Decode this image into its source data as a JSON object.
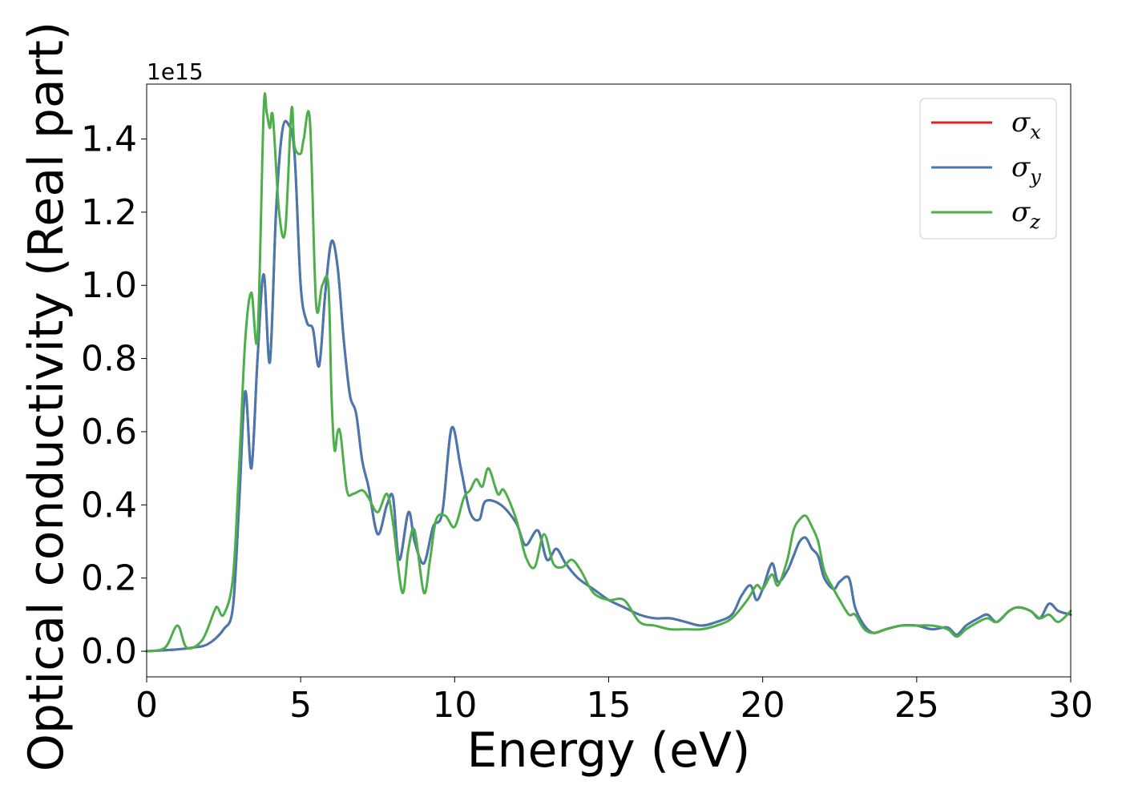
{
  "chart_data": {
    "type": "line",
    "title": "",
    "xlabel": "Energy (eV)",
    "ylabel": "Optical conductivity (Real part)",
    "y_offset_label": "1e15",
    "xlim": [
      0,
      30
    ],
    "ylim": [
      -0.07,
      1.55
    ],
    "xticks": [
      0,
      5,
      10,
      15,
      20,
      25,
      30
    ],
    "yticks": [
      0.0,
      0.2,
      0.4,
      0.6,
      0.8,
      1.0,
      1.2,
      1.4
    ],
    "ytick_labels": [
      "0.0",
      "0.2",
      "0.4",
      "0.6",
      "0.8",
      "1.0",
      "1.2",
      "1.4"
    ],
    "grid": false,
    "legend_position": "top-right",
    "series": [
      {
        "name": "σx",
        "legend_symbol": "σ",
        "legend_sub": "x",
        "color": "#d62728",
        "x": [
          0,
          1,
          1.5,
          2,
          2.5,
          2.8,
          3,
          3.2,
          3.4,
          3.6,
          3.8,
          4.0,
          4.2,
          4.4,
          4.6,
          4.8,
          5.0,
          5.2,
          5.4,
          5.6,
          5.8,
          6.0,
          6.2,
          6.4,
          6.6,
          6.8,
          7.0,
          7.2,
          7.5,
          7.8,
          8.0,
          8.2,
          8.5,
          8.7,
          9.0,
          9.3,
          9.6,
          9.9,
          10.2,
          10.5,
          10.8,
          11.0,
          11.5,
          12.0,
          12.3,
          12.7,
          13.0,
          13.3,
          13.6,
          14.0,
          14.5,
          15.0,
          15.5,
          16.0,
          16.5,
          17.0,
          17.5,
          18.0,
          18.5,
          19.0,
          19.3,
          19.6,
          19.8,
          20.0,
          20.3,
          20.5,
          20.8,
          21.0,
          21.2,
          21.4,
          21.6,
          21.8,
          22.0,
          22.3,
          22.5,
          22.8,
          23.0,
          23.3,
          23.6,
          24.0,
          24.5,
          25.0,
          25.5,
          26.0,
          26.3,
          26.6,
          27.0,
          27.3,
          27.6,
          28.0,
          28.3,
          28.7,
          29.0,
          29.3,
          29.6,
          30.0
        ],
        "y": [
          0.0,
          0.005,
          0.01,
          0.02,
          0.06,
          0.12,
          0.4,
          0.71,
          0.5,
          0.8,
          1.03,
          0.79,
          1.2,
          1.42,
          1.44,
          1.36,
          1.0,
          0.9,
          0.88,
          0.78,
          0.98,
          1.12,
          1.05,
          0.85,
          0.7,
          0.65,
          0.52,
          0.45,
          0.32,
          0.4,
          0.42,
          0.25,
          0.38,
          0.3,
          0.24,
          0.34,
          0.38,
          0.61,
          0.5,
          0.38,
          0.36,
          0.41,
          0.4,
          0.35,
          0.29,
          0.33,
          0.25,
          0.28,
          0.24,
          0.2,
          0.17,
          0.14,
          0.12,
          0.1,
          0.09,
          0.09,
          0.08,
          0.07,
          0.08,
          0.1,
          0.15,
          0.18,
          0.14,
          0.17,
          0.24,
          0.19,
          0.22,
          0.26,
          0.3,
          0.31,
          0.28,
          0.26,
          0.2,
          0.17,
          0.19,
          0.2,
          0.12,
          0.07,
          0.05,
          0.06,
          0.07,
          0.07,
          0.06,
          0.065,
          0.045,
          0.07,
          0.09,
          0.1,
          0.08,
          0.11,
          0.12,
          0.11,
          0.09,
          0.13,
          0.11,
          0.1
        ]
      },
      {
        "name": "σy",
        "legend_symbol": "σ",
        "legend_sub": "y",
        "color": "#4878b0",
        "x": [
          0,
          1,
          1.5,
          2,
          2.5,
          2.8,
          3,
          3.2,
          3.4,
          3.6,
          3.8,
          4.0,
          4.2,
          4.4,
          4.6,
          4.8,
          5.0,
          5.2,
          5.4,
          5.6,
          5.8,
          6.0,
          6.2,
          6.4,
          6.6,
          6.8,
          7.0,
          7.2,
          7.5,
          7.8,
          8.0,
          8.2,
          8.5,
          8.7,
          9.0,
          9.3,
          9.6,
          9.9,
          10.2,
          10.5,
          10.8,
          11.0,
          11.5,
          12.0,
          12.3,
          12.7,
          13.0,
          13.3,
          13.6,
          14.0,
          14.5,
          15.0,
          15.5,
          16.0,
          16.5,
          17.0,
          17.5,
          18.0,
          18.5,
          19.0,
          19.3,
          19.6,
          19.8,
          20.0,
          20.3,
          20.5,
          20.8,
          21.0,
          21.2,
          21.4,
          21.6,
          21.8,
          22.0,
          22.3,
          22.5,
          22.8,
          23.0,
          23.3,
          23.6,
          24.0,
          24.5,
          25.0,
          25.5,
          26.0,
          26.3,
          26.6,
          27.0,
          27.3,
          27.6,
          28.0,
          28.3,
          28.7,
          29.0,
          29.3,
          29.6,
          30.0
        ],
        "y": [
          0.0,
          0.005,
          0.01,
          0.02,
          0.06,
          0.12,
          0.4,
          0.71,
          0.5,
          0.8,
          1.03,
          0.79,
          1.2,
          1.42,
          1.44,
          1.36,
          1.0,
          0.9,
          0.88,
          0.78,
          0.98,
          1.12,
          1.05,
          0.85,
          0.7,
          0.65,
          0.52,
          0.45,
          0.32,
          0.4,
          0.42,
          0.25,
          0.38,
          0.3,
          0.24,
          0.34,
          0.38,
          0.61,
          0.5,
          0.38,
          0.36,
          0.41,
          0.4,
          0.35,
          0.29,
          0.33,
          0.25,
          0.28,
          0.24,
          0.2,
          0.17,
          0.14,
          0.12,
          0.1,
          0.09,
          0.09,
          0.08,
          0.07,
          0.08,
          0.1,
          0.15,
          0.18,
          0.14,
          0.17,
          0.24,
          0.19,
          0.22,
          0.26,
          0.3,
          0.31,
          0.28,
          0.26,
          0.2,
          0.17,
          0.19,
          0.2,
          0.12,
          0.07,
          0.05,
          0.06,
          0.07,
          0.07,
          0.06,
          0.065,
          0.045,
          0.07,
          0.09,
          0.1,
          0.08,
          0.11,
          0.12,
          0.11,
          0.09,
          0.13,
          0.11,
          0.1
        ]
      },
      {
        "name": "σz",
        "legend_symbol": "σ",
        "legend_sub": "z",
        "color": "#4daf4a",
        "x": [
          0,
          0.6,
          1.0,
          1.3,
          1.8,
          2.2,
          2.3,
          2.5,
          2.8,
          3.0,
          3.2,
          3.4,
          3.6,
          3.8,
          3.9,
          4.0,
          4.1,
          4.3,
          4.5,
          4.7,
          4.8,
          5.0,
          5.1,
          5.3,
          5.5,
          5.7,
          5.9,
          6.0,
          6.1,
          6.2,
          6.3,
          6.5,
          6.7,
          7.0,
          7.2,
          7.5,
          7.8,
          8.0,
          8.3,
          8.5,
          8.7,
          9.0,
          9.2,
          9.4,
          9.7,
          10.0,
          10.3,
          10.5,
          10.7,
          10.9,
          11.1,
          11.4,
          11.6,
          12.0,
          12.3,
          12.6,
          12.9,
          13.2,
          13.5,
          13.8,
          14.1,
          14.5,
          15.0,
          15.5,
          16.0,
          16.5,
          17.0,
          17.5,
          18.0,
          18.5,
          19.0,
          19.5,
          19.8,
          20.0,
          20.3,
          20.5,
          20.8,
          21.0,
          21.2,
          21.4,
          21.6,
          21.8,
          22.0,
          22.3,
          22.5,
          22.8,
          23.0,
          23.3,
          23.6,
          24.0,
          24.5,
          25.0,
          25.5,
          26.0,
          26.3,
          26.6,
          27.0,
          27.3,
          27.6,
          28.0,
          28.3,
          28.7,
          29.0,
          29.3,
          29.6,
          30.0
        ],
        "y": [
          0.0,
          0.01,
          0.07,
          0.01,
          0.03,
          0.11,
          0.12,
          0.1,
          0.2,
          0.5,
          0.85,
          0.98,
          0.86,
          1.48,
          1.47,
          1.43,
          1.46,
          1.2,
          1.15,
          1.48,
          1.38,
          1.36,
          1.4,
          1.45,
          0.95,
          1.0,
          1.0,
          0.7,
          0.55,
          0.6,
          0.59,
          0.44,
          0.43,
          0.44,
          0.42,
          0.38,
          0.43,
          0.35,
          0.16,
          0.28,
          0.33,
          0.16,
          0.25,
          0.36,
          0.37,
          0.34,
          0.42,
          0.44,
          0.47,
          0.45,
          0.5,
          0.43,
          0.44,
          0.36,
          0.26,
          0.23,
          0.32,
          0.24,
          0.23,
          0.25,
          0.22,
          0.16,
          0.14,
          0.14,
          0.08,
          0.07,
          0.06,
          0.06,
          0.06,
          0.07,
          0.09,
          0.14,
          0.18,
          0.17,
          0.21,
          0.18,
          0.25,
          0.33,
          0.36,
          0.37,
          0.34,
          0.3,
          0.22,
          0.17,
          0.14,
          0.1,
          0.1,
          0.06,
          0.05,
          0.06,
          0.07,
          0.07,
          0.07,
          0.06,
          0.04,
          0.06,
          0.08,
          0.09,
          0.08,
          0.11,
          0.12,
          0.11,
          0.09,
          0.1,
          0.08,
          0.11
        ]
      }
    ]
  }
}
